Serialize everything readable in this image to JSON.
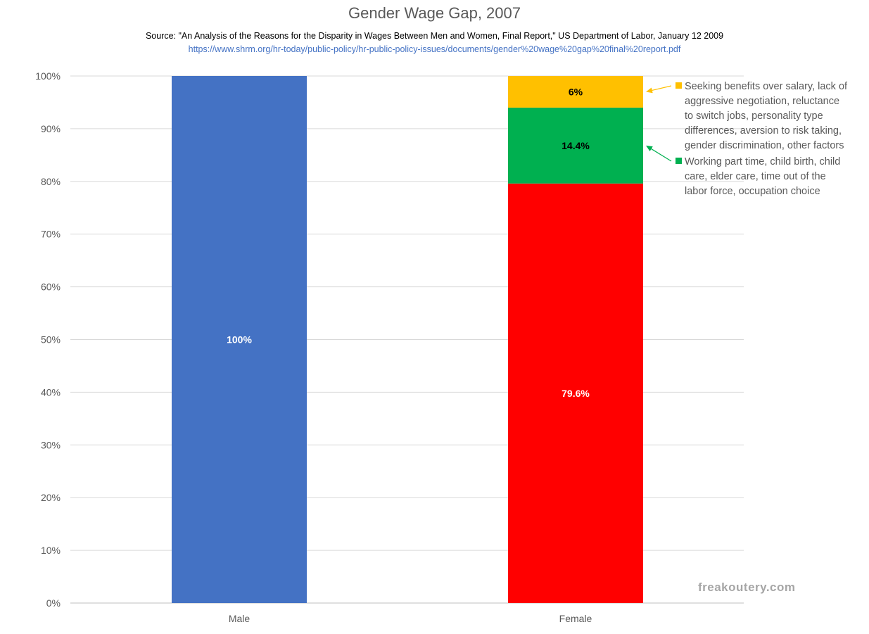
{
  "chart_data": {
    "type": "bar",
    "stacked": true,
    "title": "Gender Wage Gap, 2007",
    "subtitle": "Source: \"An Analysis of the Reasons for the Disparity in Wages Between Men and Women, Final Report,\" US Department of Labor, January 12 2009",
    "source_url": "https://www.shrm.org/hr-today/public-policy/hr-public-policy-issues/documents/gender%20wage%20gap%20final%20report.pdf",
    "categories": [
      "Male",
      "Female"
    ],
    "ylim": [
      0,
      100
    ],
    "yticks": [
      "0%",
      "10%",
      "20%",
      "30%",
      "40%",
      "50%",
      "60%",
      "70%",
      "80%",
      "90%",
      "100%"
    ],
    "grid": true,
    "series": [
      {
        "values": [
          100,
          79.6
        ],
        "labels": [
          "100%",
          "79.6%"
        ],
        "colors": [
          "#4472c4",
          "#ff0000"
        ],
        "label_color": "#ffffff"
      },
      {
        "name": "Working part time, child birth, child care, elder care, time out of the labor force, occupation choice",
        "values": [
          0,
          14.4
        ],
        "labels": [
          "",
          "14.4%"
        ],
        "colors": [
          "#00b050",
          "#00b050"
        ],
        "label_color": "#000000"
      },
      {
        "name": "Seeking benefits over salary, lack of aggressive negotiation, reluctance to switch jobs, personality type differences, aversion to risk taking, gender discrimination, other factors",
        "values": [
          0,
          6
        ],
        "labels": [
          "",
          "6%"
        ],
        "colors": [
          "#ffc000",
          "#ffc000"
        ],
        "label_color": "#000000"
      }
    ],
    "annotations": [
      {
        "series": 2,
        "lines": [
          "Seeking benefits over salary, lack of",
          "aggressive negotiation, reluctance",
          "to switch jobs, personality type",
          "differences, aversion to risk taking,",
          "gender discrimination, other factors"
        ],
        "color": "#ffc000"
      },
      {
        "series": 1,
        "lines": [
          "Working part time, child birth, child",
          "care, elder care, time out of the",
          "labor force, occupation choice"
        ],
        "color": "#00b050"
      }
    ]
  },
  "watermark": "freakoutery.com"
}
